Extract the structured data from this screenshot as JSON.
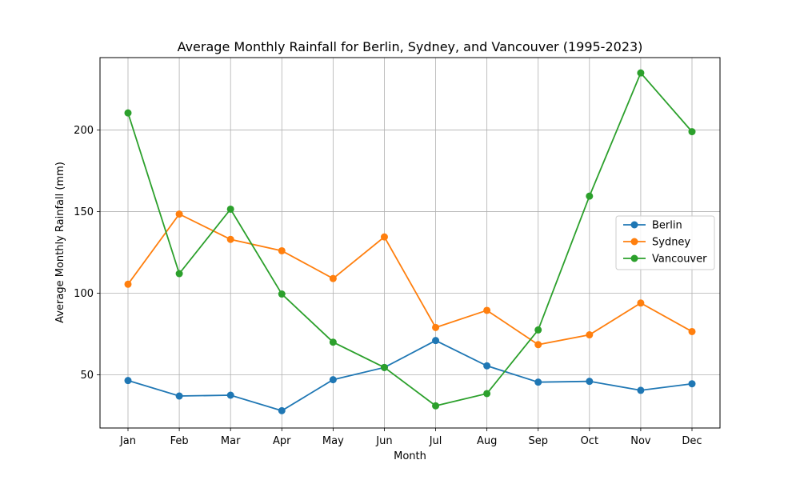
{
  "chart_data": {
    "type": "line",
    "title": "Average Monthly Rainfall for Berlin, Sydney, and Vancouver (1995-2023)",
    "xlabel": "Month",
    "ylabel": "Average Monthly Rainfall (mm)",
    "categories": [
      "Jan",
      "Feb",
      "Mar",
      "Apr",
      "May",
      "Jun",
      "Jul",
      "Aug",
      "Sep",
      "Oct",
      "Nov",
      "Dec"
    ],
    "yticks": [
      50,
      100,
      150,
      200
    ],
    "ylim": [
      17.4,
      244.4
    ],
    "grid": true,
    "legend_position": "center-right",
    "series": [
      {
        "name": "Berlin",
        "color": "#1f77b4",
        "values": [
          46.5,
          37,
          37.5,
          28,
          47,
          54.5,
          71,
          55.5,
          45.5,
          46,
          40.5,
          44.5
        ]
      },
      {
        "name": "Sydney",
        "color": "#ff7f0e",
        "values": [
          105.5,
          148.5,
          133,
          126,
          109,
          134.5,
          79,
          89.5,
          68.5,
          74.5,
          94,
          76.5
        ]
      },
      {
        "name": "Vancouver",
        "color": "#2ca02c",
        "values": [
          210.5,
          112,
          151.5,
          99.5,
          70,
          54.5,
          31,
          38.5,
          77.5,
          159.5,
          235,
          199
        ]
      }
    ]
  }
}
